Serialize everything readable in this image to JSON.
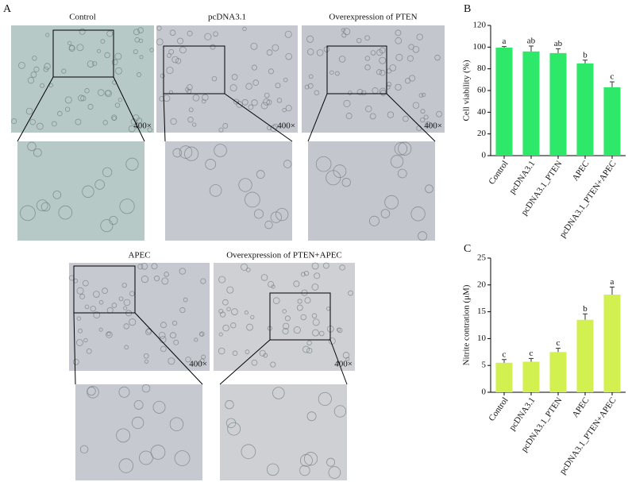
{
  "figure": {
    "panels": [
      "A",
      "B",
      "C"
    ],
    "images": [
      {
        "title": "Control",
        "magnification": "400×"
      },
      {
        "title": "pcDNA3.1",
        "magnification": "400×"
      },
      {
        "title": "Overexpression of PTEN",
        "magnification": "400×"
      },
      {
        "title": "APEC",
        "magnification": "400×"
      },
      {
        "title": "Overexpression of PTEN+APEC",
        "magnification": "400×"
      }
    ]
  },
  "chart_data": [
    {
      "type": "bar",
      "ylabel": "Cell viability (%)",
      "categories": [
        "Control",
        "pcDNA3.1",
        "pcDNA3.1_PTEN",
        "APEC",
        "pcDNA3.1_PTEN+APEC"
      ],
      "values": [
        99.5,
        96,
        94.5,
        85,
        63
      ],
      "errors": [
        1,
        5,
        4,
        3,
        5
      ],
      "annotations": [
        "a",
        "ab",
        "ab",
        "b",
        "c"
      ],
      "color": "#2ee86a",
      "ylim": [
        0,
        120
      ],
      "yticks": [
        0,
        20,
        40,
        60,
        80,
        100,
        120
      ]
    },
    {
      "type": "bar",
      "ylabel": "Nitrite contration (μM)",
      "categories": [
        "Control",
        "pcDNA3.1",
        "pcDNA3.1_PTEN",
        "APEC",
        "pcDNA3.1_PTEN+APEC"
      ],
      "values": [
        5.5,
        5.7,
        7.5,
        13.5,
        18.2
      ],
      "errors": [
        0.6,
        0.6,
        0.7,
        1.1,
        1.4
      ],
      "annotations": [
        "c",
        "c",
        "c",
        "b",
        "a"
      ],
      "color": "#d2f150",
      "ylim": [
        0,
        25
      ],
      "yticks": [
        0,
        5,
        10,
        15,
        20,
        25
      ]
    }
  ]
}
